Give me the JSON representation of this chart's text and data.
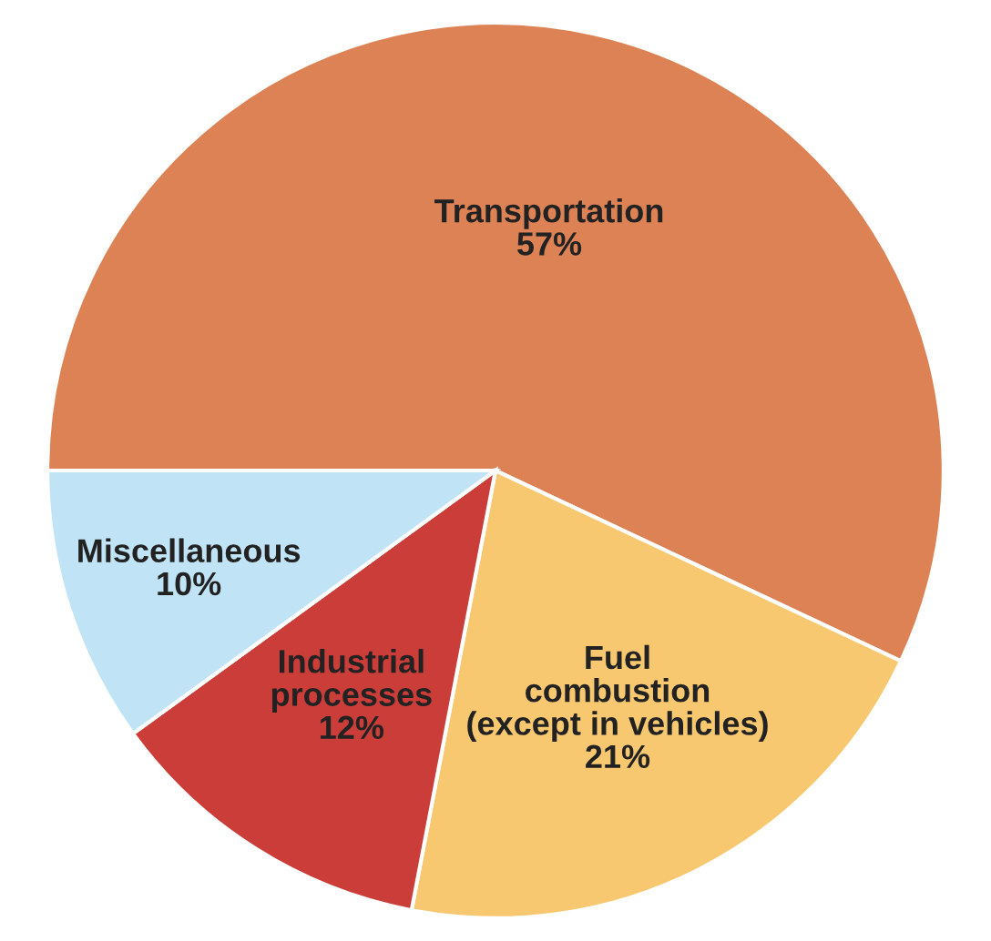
{
  "chart_data": {
    "type": "pie",
    "categories": [
      "Transportation",
      "Fuel\ncombustion\n(except in vehicles)",
      "Industrial\nprocesses",
      "Miscellaneous"
    ],
    "values": [
      57,
      21,
      12,
      10
    ],
    "colors": [
      "#dd8255",
      "#f7c86f",
      "#cb3d38",
      "#c0e4f6"
    ],
    "value_labels": [
      "57%",
      "21%",
      "12%",
      "10%"
    ]
  }
}
